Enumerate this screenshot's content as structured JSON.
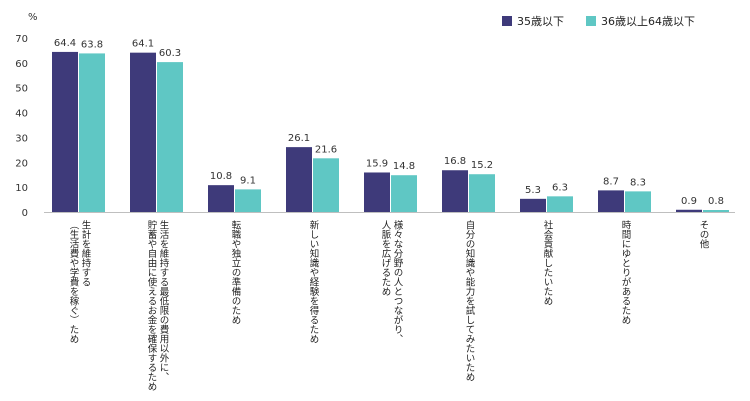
{
  "chart_data": {
    "type": "bar",
    "ylabel": "%",
    "ylim": [
      0,
      70
    ],
    "yticks": [
      0,
      10,
      20,
      30,
      40,
      50,
      60,
      70
    ],
    "grid": false,
    "legend_position": "top-right",
    "categories": [
      "生計を維持する\n（生活費や学費を稼ぐ）ため",
      "生活を維持する最低限の費用以外に、\n貯蓄や自由に使えるお金を確保するため",
      "転職や独立の準備のため",
      "新しい知識や経験を得るため",
      "様々な分野の人とつながり、\n人脈を広げるため",
      "自分の知識や能力を試してみたいため",
      "社会貢献したいため",
      "時間にゆとりがあるため",
      "その他"
    ],
    "series": [
      {
        "name": "35歳以下",
        "color": "#3e3a7a",
        "values": [
          64.4,
          64.1,
          10.8,
          26.1,
          15.9,
          16.8,
          5.3,
          8.7,
          0.9
        ]
      },
      {
        "name": "36歳以上64歳以下",
        "color": "#5fc7c4",
        "values": [
          63.8,
          60.3,
          9.1,
          21.6,
          14.8,
          15.2,
          6.3,
          8.3,
          0.8
        ]
      }
    ]
  }
}
